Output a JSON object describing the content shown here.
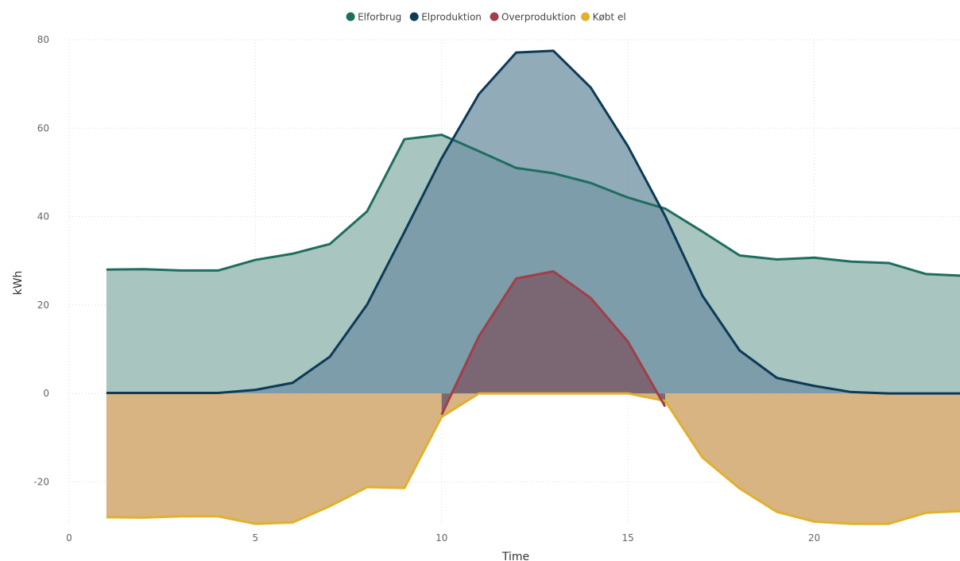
{
  "chart_data": {
    "type": "area",
    "title": "",
    "xlabel": "Time",
    "ylabel": "kWh",
    "xlim": [
      0,
      24
    ],
    "ylim": [
      -30,
      80
    ],
    "x_ticks": [
      0,
      5,
      10,
      15,
      20
    ],
    "y_ticks": [
      -20,
      0,
      20,
      40,
      60,
      80
    ],
    "grid": true,
    "legend_position": "top-center",
    "x": [
      1,
      2,
      3,
      4,
      5,
      6,
      7,
      8,
      9,
      10,
      11,
      12,
      13,
      14,
      15,
      16,
      17,
      18,
      19,
      20,
      21,
      22,
      23,
      24
    ],
    "series": [
      {
        "name": "Elforbrug",
        "color": "#1e6e5e",
        "fill": "#a3c2bd",
        "values": [
          28.0,
          28.1,
          27.8,
          27.8,
          30.2,
          31.6,
          33.8,
          41.2,
          57.5,
          58.5,
          54.8,
          51.0,
          49.8,
          47.6,
          44.3,
          41.8,
          36.6,
          31.2,
          30.3,
          30.7,
          29.8,
          29.5,
          27.0,
          26.6
        ]
      },
      {
        "name": "Elproduktion",
        "color": "#0d3a57",
        "fill": "#6e8fa2",
        "values": [
          0.1,
          0.1,
          0.1,
          0.1,
          0.8,
          2.4,
          8.3,
          20.1,
          36.5,
          53.2,
          67.7,
          77.1,
          77.5,
          69.2,
          55.9,
          40.1,
          22.1,
          9.7,
          3.5,
          1.7,
          0.3,
          0.0,
          0.0,
          0.0
        ]
      },
      {
        "name": "Overproduktion",
        "color": "#a23e48",
        "fill": "#7b6470",
        "values": [
          null,
          null,
          null,
          null,
          null,
          null,
          null,
          null,
          null,
          -4.8,
          12.9,
          26.0,
          27.6,
          21.6,
          11.7,
          -3.0,
          null,
          null,
          null,
          null,
          null,
          null,
          null,
          null
        ]
      },
      {
        "name": "Købt el",
        "color": "#e1b12c",
        "fill": "#d5b07a",
        "values": [
          -28.0,
          -28.1,
          -27.8,
          -27.8,
          -29.5,
          -29.2,
          -25.5,
          -21.2,
          -21.4,
          -5.3,
          0.0,
          0.0,
          0.0,
          0.0,
          0.0,
          -1.7,
          -14.5,
          -21.5,
          -26.8,
          -29.0,
          -29.5,
          -29.5,
          -27.0,
          -26.6
        ]
      }
    ]
  }
}
